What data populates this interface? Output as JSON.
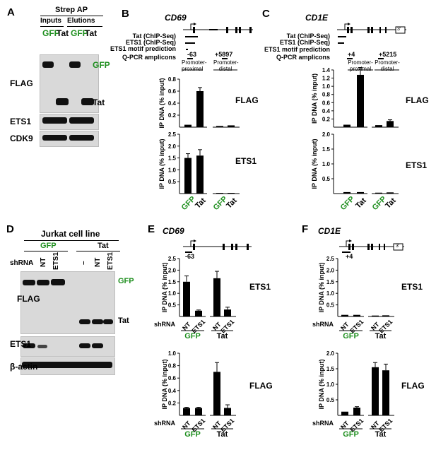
{
  "panels": {
    "A": "A",
    "B": "B",
    "C": "C",
    "D": "D",
    "E": "E",
    "F": "F"
  },
  "panelA": {
    "header": "Strep AP",
    "inputs": "Inputs",
    "elutions": "Elutions",
    "lanes": [
      "GFP",
      "Tat",
      "GFP",
      "Tat"
    ],
    "rows": [
      "FLAG",
      "ETS1",
      "CDK9"
    ],
    "band_gfp": "GFP",
    "band_tat": "Tat"
  },
  "panelB": {
    "gene": "CD69",
    "track_labels": [
      "Tat (ChIP-Seq)",
      "ETS1 (ChIP-Seq)",
      "ETS1 motif prediction",
      "Q-PCR amplicons"
    ],
    "amp1_pos": "-63",
    "amp2_pos": "+5897",
    "region1": "Promoter-proximal",
    "region2": "Promoter-distal"
  },
  "panelC": {
    "gene": "CD1E",
    "track_labels": [
      "Tat (ChIP-Seq)",
      "ETS1 (ChIP-Seq)",
      "ETS1 motif prediction",
      "Q-PCR amplicons"
    ],
    "amp1_pos": "+4",
    "amp2_pos": "+5215",
    "region1": "Promoter-proximal",
    "region2": "Promoter-distal",
    "box_label": "3'"
  },
  "panelD": {
    "header": "Jurkat cell line",
    "group1": "GFP",
    "group2": "Tat",
    "shrna": "shRNA",
    "lanes": [
      "–",
      "NT",
      "ETS1",
      "–",
      "NT",
      "ETS1"
    ],
    "rows": [
      "FLAG",
      "ETS1",
      "β-actin"
    ],
    "band_gfp": "GFP",
    "band_tat": "Tat"
  },
  "panelE": {
    "gene": "CD69",
    "amp_pos": "-63",
    "box_label": ""
  },
  "panelF": {
    "gene": "CD1E",
    "amp_pos": "+4",
    "box_label": "3'"
  },
  "chart_data": [
    {
      "id": "B-top",
      "type": "bar",
      "ylabel": "IP DNA (% input)",
      "ylim": [
        0,
        0.8
      ],
      "ticks": [
        0.2,
        0.4,
        0.6,
        0.8
      ],
      "side_label": "FLAG",
      "categories": [
        "GFP",
        "Tat",
        "GFP",
        "Tat"
      ],
      "values": [
        0.04,
        0.6,
        0.02,
        0.03
      ],
      "errors": [
        0.005,
        0.06,
        0.005,
        0.005
      ]
    },
    {
      "id": "B-bottom",
      "type": "bar",
      "ylabel": "IP DNA (% input)",
      "ylim": [
        0,
        2.5
      ],
      "ticks": [
        0.5,
        1.0,
        1.5,
        2.0,
        2.5
      ],
      "side_label": "ETS1",
      "categories": [
        "GFP",
        "Tat",
        "GFP",
        "Tat"
      ],
      "values": [
        1.5,
        1.6,
        0.03,
        0.03
      ],
      "errors": [
        0.18,
        0.25,
        0.01,
        0.01
      ]
    },
    {
      "id": "C-top",
      "type": "bar",
      "ylabel": "IP DNA (% input)",
      "ylim": [
        0,
        1.4
      ],
      "ticks": [
        0.2,
        0.4,
        0.6,
        0.8,
        1.0,
        1.2,
        1.4
      ],
      "side_label": "FLAG",
      "categories": [
        "GFP",
        "Tat",
        "GFP",
        "Tat"
      ],
      "values": [
        0.06,
        1.28,
        0.05,
        0.15
      ],
      "errors": [
        0.01,
        0.18,
        0.01,
        0.03
      ]
    },
    {
      "id": "C-bottom",
      "type": "bar",
      "ylabel": "IP DNA (% input)",
      "ylim": [
        0,
        2.0
      ],
      "ticks": [
        0.5,
        1.0,
        1.5,
        2.0
      ],
      "side_label": "ETS1",
      "categories": [
        "GFP",
        "Tat",
        "GFP",
        "Tat"
      ],
      "values": [
        0.05,
        0.05,
        0.03,
        0.04
      ],
      "errors": [
        0.005,
        0.005,
        0.005,
        0.005
      ]
    },
    {
      "id": "E-top",
      "type": "bar",
      "ylabel": "IP DNA (% input)",
      "ylim": [
        0,
        2.5
      ],
      "ticks": [
        0.5,
        1.0,
        1.5,
        2.0,
        2.5
      ],
      "side_label": "ETS1",
      "categories": [
        "NT",
        "ETS1",
        "NT",
        "ETS1"
      ],
      "groups": [
        "GFP",
        "Tat"
      ],
      "xlabel": "shRNA",
      "values": [
        1.5,
        0.25,
        1.65,
        0.3
      ],
      "errors": [
        0.25,
        0.03,
        0.3,
        0.1
      ]
    },
    {
      "id": "E-bottom",
      "type": "bar",
      "ylabel": "IP DNA (% input)",
      "ylim": [
        0,
        1.0
      ],
      "ticks": [
        0.2,
        0.4,
        0.6,
        0.8,
        1.0
      ],
      "side_label": "FLAG",
      "categories": [
        "NT",
        "ETS1",
        "NT",
        "ETS1"
      ],
      "groups": [
        "GFP",
        "Tat"
      ],
      "xlabel": "shRNA",
      "values": [
        0.12,
        0.12,
        0.7,
        0.12
      ],
      "errors": [
        0.01,
        0.01,
        0.15,
        0.05
      ]
    },
    {
      "id": "F-top",
      "type": "bar",
      "ylabel": "IP DNA (% input)",
      "ylim": [
        0,
        2.5
      ],
      "ticks": [
        0.5,
        1.0,
        1.5,
        2.0,
        2.5
      ],
      "side_label": "ETS1",
      "categories": [
        "NT",
        "ETS1",
        "NT",
        "ETS1"
      ],
      "groups": [
        "GFP",
        "Tat"
      ],
      "xlabel": "shRNA",
      "values": [
        0.07,
        0.07,
        0.04,
        0.05
      ],
      "errors": [
        0.005,
        0.005,
        0.005,
        0.005
      ]
    },
    {
      "id": "F-bottom",
      "type": "bar",
      "ylabel": "IP DNA (% input)",
      "ylim": [
        0,
        2.0
      ],
      "ticks": [
        0.5,
        1.0,
        1.5,
        2.0
      ],
      "side_label": "FLAG",
      "categories": [
        "NT",
        "ETS1",
        "NT",
        "ETS1"
      ],
      "groups": [
        "GFP",
        "Tat"
      ],
      "xlabel": "shRNA",
      "values": [
        0.12,
        0.25,
        1.55,
        1.45
      ],
      "errors": [
        0.01,
        0.03,
        0.15,
        0.2
      ]
    }
  ],
  "colors": {
    "green": "#1f8f1f",
    "bar": "#000000"
  }
}
